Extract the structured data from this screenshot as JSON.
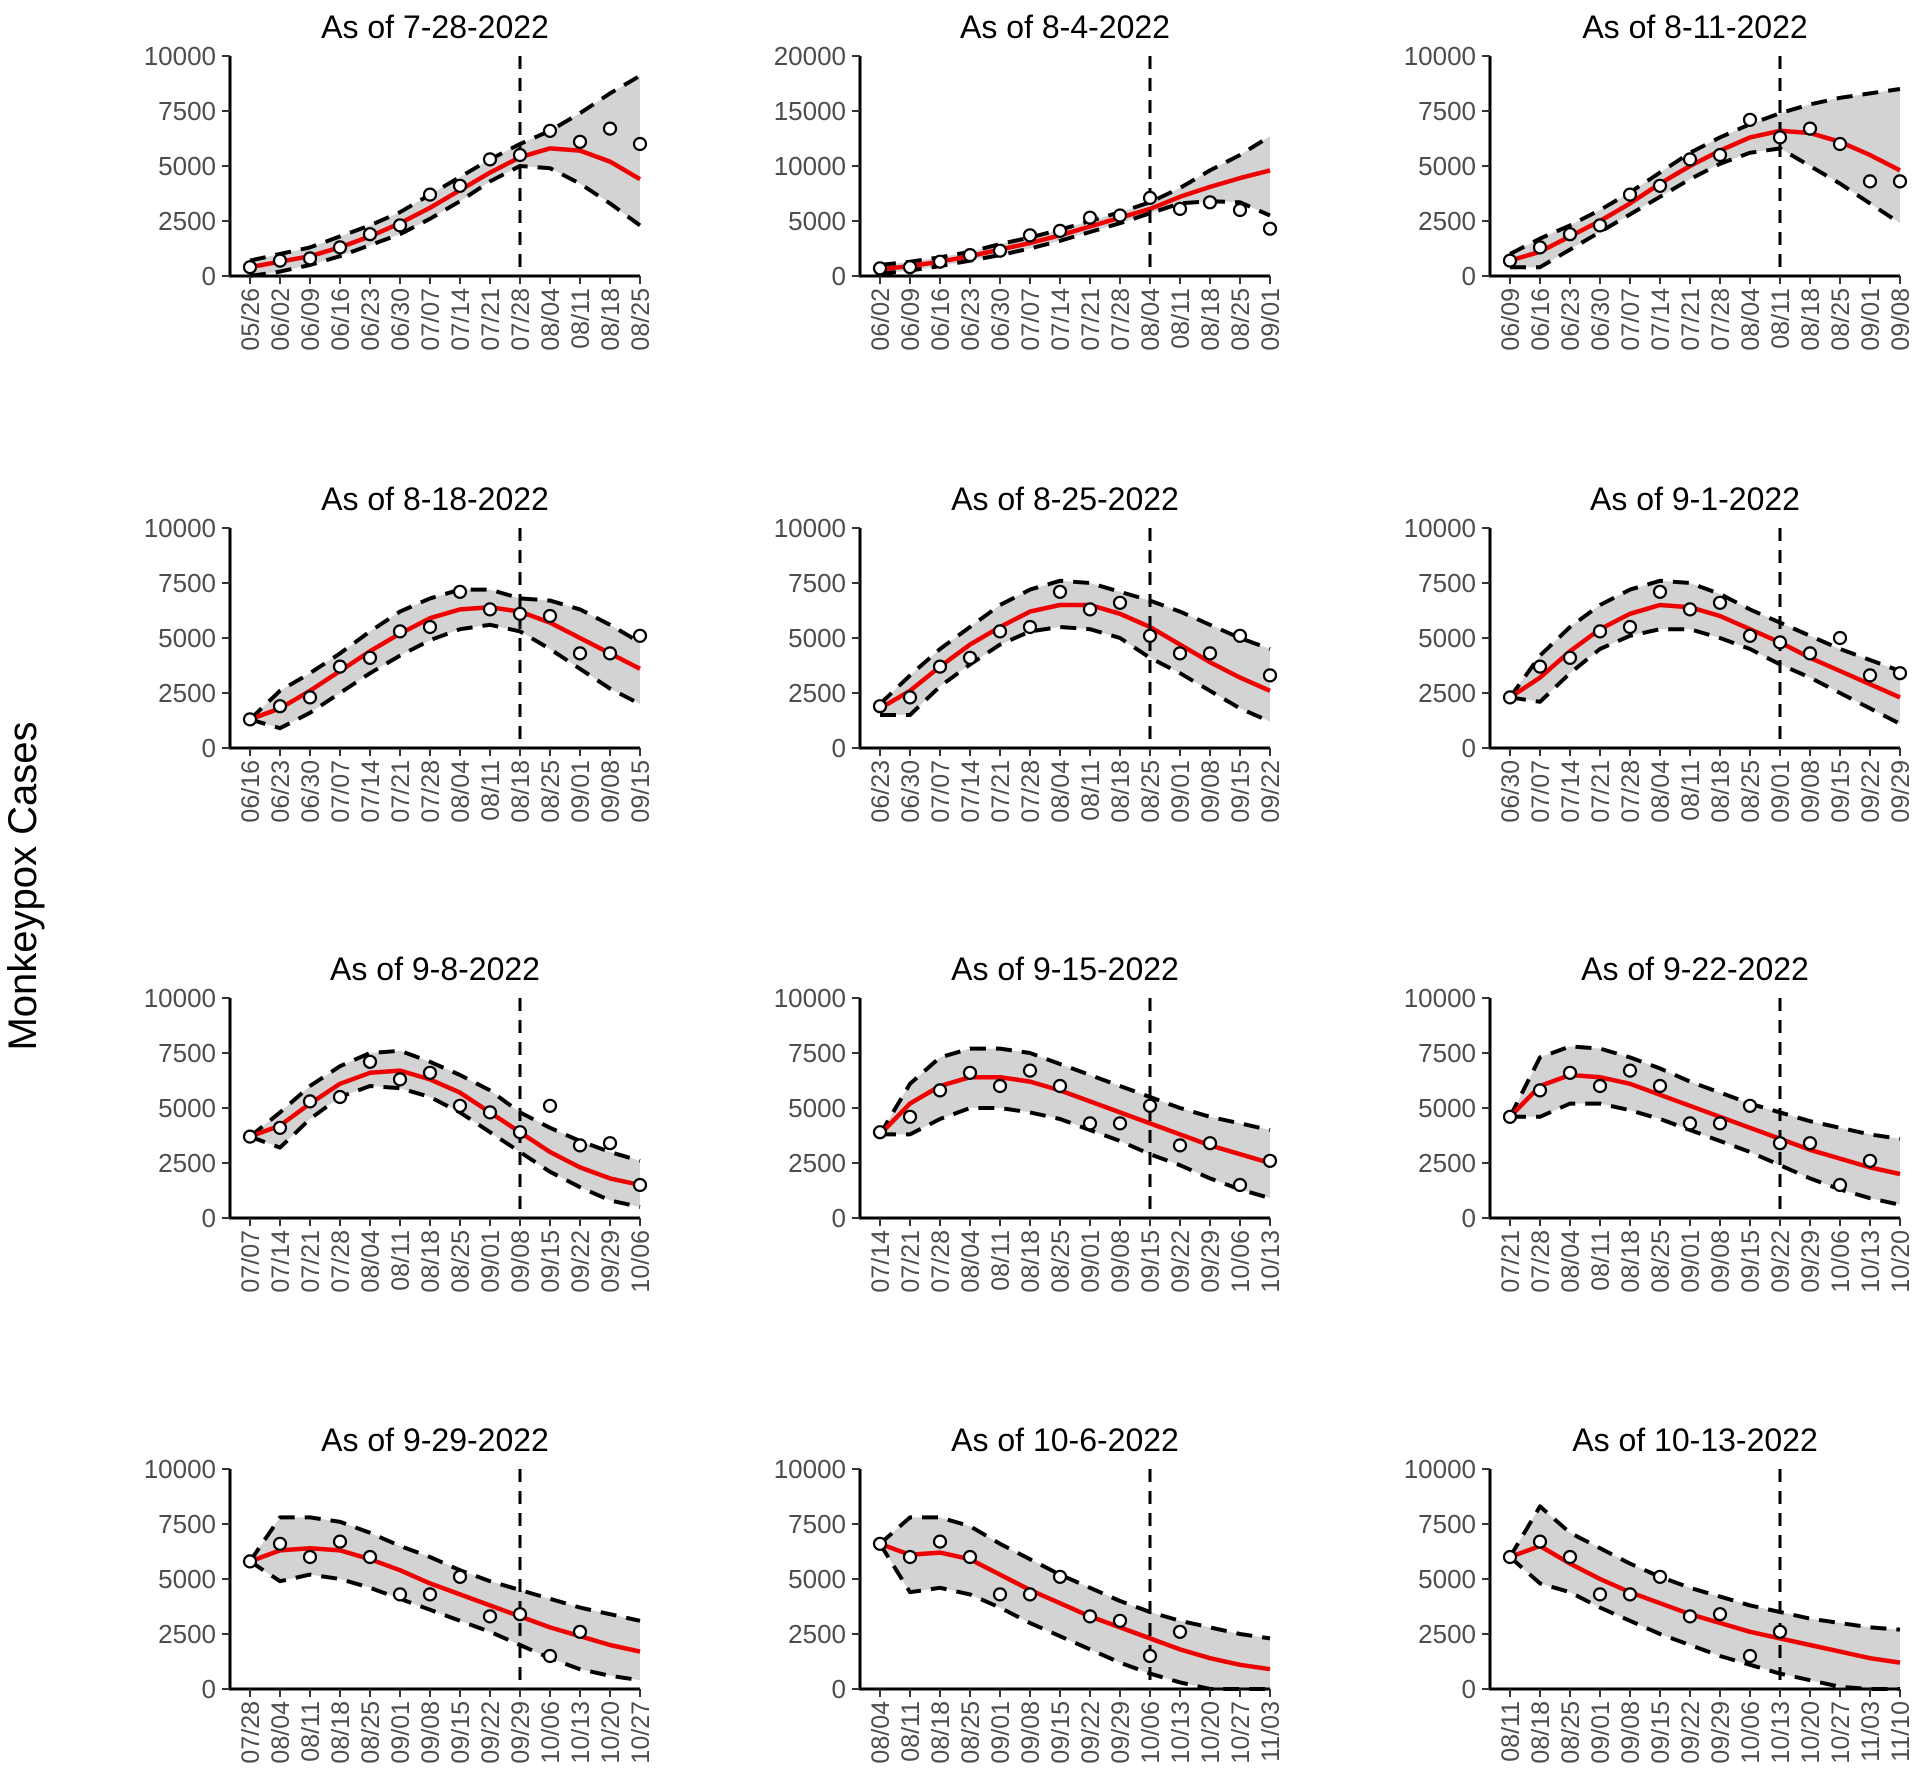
{
  "figure": {
    "ylabel": "Monkeypox Cases"
  },
  "style": {
    "fit_color": "#ee0000",
    "band_color": "#d3d3d3",
    "bound_color": "#000000",
    "obs_color": "#000000"
  },
  "chart_data": [
    {
      "type": "line",
      "title": "As of 7-28-2022",
      "ylim": [
        0,
        10000
      ],
      "yticks": [
        0,
        2500,
        5000,
        7500,
        10000
      ],
      "ytick_labels": [
        "0",
        "2500",
        "5000",
        "7500",
        "10000"
      ],
      "x": [
        "05/26",
        "06/02",
        "06/09",
        "06/16",
        "06/23",
        "06/30",
        "07/07",
        "07/14",
        "07/21",
        "07/28",
        "08/04",
        "08/11",
        "08/18",
        "08/25"
      ],
      "forecast_start": "07/28",
      "observed": [
        400,
        700,
        800,
        1300,
        1900,
        2300,
        3700,
        4100,
        5300,
        5500,
        6600,
        6100,
        6700,
        6000
      ],
      "fit": [
        400,
        650,
        900,
        1300,
        1800,
        2400,
        3100,
        3900,
        4700,
        5400,
        5800,
        5700,
        5200,
        4400
      ],
      "lower": [
        0,
        200,
        500,
        900,
        1400,
        1900,
        2600,
        3400,
        4300,
        5000,
        4900,
        4200,
        3300,
        2300
      ],
      "upper": [
        700,
        1000,
        1300,
        1800,
        2300,
        2900,
        3700,
        4500,
        5300,
        6000,
        6600,
        7400,
        8300,
        9100
      ]
    },
    {
      "type": "line",
      "title": "As of 8-4-2022",
      "ylim": [
        0,
        20000
      ],
      "yticks": [
        0,
        5000,
        10000,
        15000,
        20000
      ],
      "ytick_labels": [
        "0",
        "5000",
        "10000",
        "15000",
        "20000"
      ],
      "x": [
        "06/02",
        "06/09",
        "06/16",
        "06/23",
        "06/30",
        "07/07",
        "07/14",
        "07/21",
        "07/28",
        "08/04",
        "08/11",
        "08/18",
        "08/25",
        "09/01"
      ],
      "forecast_start": "08/04",
      "observed": [
        700,
        800,
        1300,
        1900,
        2300,
        3700,
        4100,
        5300,
        5500,
        7100,
        6100,
        6700,
        6000,
        4300
      ],
      "fit": [
        600,
        900,
        1300,
        1800,
        2400,
        3000,
        3700,
        4500,
        5300,
        6100,
        7200,
        8100,
        8900,
        9600
      ],
      "lower": [
        200,
        500,
        900,
        1400,
        1900,
        2500,
        3200,
        4000,
        4800,
        5700,
        6600,
        6800,
        6700,
        5500
      ],
      "upper": [
        1000,
        1300,
        1700,
        2200,
        2900,
        3500,
        4200,
        5000,
        5800,
        6700,
        8000,
        9600,
        11000,
        12700
      ]
    },
    {
      "type": "line",
      "title": "As of 8-11-2022",
      "ylim": [
        0,
        10000
      ],
      "yticks": [
        0,
        2500,
        5000,
        7500,
        10000
      ],
      "ytick_labels": [
        "0",
        "2500",
        "5000",
        "7500",
        "10000"
      ],
      "x": [
        "06/09",
        "06/16",
        "06/23",
        "06/30",
        "07/07",
        "07/14",
        "07/21",
        "07/28",
        "08/04",
        "08/11",
        "08/18",
        "08/25",
        "09/01",
        "09/08"
      ],
      "forecast_start": "08/11",
      "observed": [
        700,
        1300,
        1900,
        2300,
        3700,
        4100,
        5300,
        5500,
        7100,
        6300,
        6700,
        6000,
        4300,
        4300
      ],
      "fit": [
        700,
        1100,
        1800,
        2500,
        3300,
        4200,
        5000,
        5700,
        6300,
        6600,
        6500,
        6100,
        5500,
        4800
      ],
      "lower": [
        400,
        400,
        1200,
        2000,
        2800,
        3600,
        4400,
        5100,
        5600,
        5800,
        5000,
        4200,
        3300,
        2400
      ],
      "upper": [
        1000,
        1700,
        2300,
        3000,
        3800,
        4700,
        5600,
        6300,
        6900,
        7400,
        7800,
        8100,
        8300,
        8500
      ]
    },
    {
      "type": "line",
      "title": "As of 8-18-2022",
      "ylim": [
        0,
        10000
      ],
      "yticks": [
        0,
        2500,
        5000,
        7500,
        10000
      ],
      "ytick_labels": [
        "0",
        "2500",
        "5000",
        "7500",
        "10000"
      ],
      "x": [
        "06/16",
        "06/23",
        "06/30",
        "07/07",
        "07/14",
        "07/21",
        "07/28",
        "08/04",
        "08/11",
        "08/18",
        "08/25",
        "09/01",
        "09/08",
        "09/15"
      ],
      "forecast_start": "08/18",
      "observed": [
        1300,
        1900,
        2300,
        3700,
        4100,
        5300,
        5500,
        7100,
        6300,
        6100,
        6000,
        4300,
        4300,
        5100
      ],
      "fit": [
        1300,
        1800,
        2600,
        3500,
        4400,
        5200,
        5900,
        6300,
        6400,
        6200,
        5700,
        5000,
        4300,
        3600
      ],
      "lower": [
        1300,
        900,
        1600,
        2500,
        3400,
        4200,
        4900,
        5400,
        5600,
        5300,
        4500,
        3600,
        2700,
        2000
      ],
      "upper": [
        1300,
        2600,
        3400,
        4300,
        5300,
        6200,
        6800,
        7200,
        7200,
        6800,
        6700,
        6300,
        5600,
        4800
      ]
    },
    {
      "type": "line",
      "title": "As of 8-25-2022",
      "ylim": [
        0,
        10000
      ],
      "yticks": [
        0,
        2500,
        5000,
        7500,
        10000
      ],
      "ytick_labels": [
        "0",
        "2500",
        "5000",
        "7500",
        "10000"
      ],
      "x": [
        "06/23",
        "06/30",
        "07/07",
        "07/14",
        "07/21",
        "07/28",
        "08/04",
        "08/11",
        "08/18",
        "08/25",
        "09/01",
        "09/08",
        "09/15",
        "09/22"
      ],
      "forecast_start": "08/25",
      "observed": [
        1900,
        2300,
        3700,
        4100,
        5300,
        5500,
        7100,
        6300,
        6600,
        5100,
        4300,
        4300,
        5100,
        3300
      ],
      "fit": [
        1800,
        2600,
        3700,
        4700,
        5500,
        6200,
        6500,
        6500,
        6100,
        5500,
        4700,
        3900,
        3200,
        2600
      ],
      "lower": [
        1500,
        1500,
        2800,
        3800,
        4700,
        5300,
        5500,
        5400,
        5000,
        4100,
        3400,
        2600,
        1800,
        1200
      ],
      "upper": [
        2000,
        3300,
        4500,
        5500,
        6500,
        7200,
        7600,
        7500,
        7100,
        6700,
        6200,
        5600,
        5000,
        4500
      ]
    },
    {
      "type": "line",
      "title": "As of 9-1-2022",
      "ylim": [
        0,
        10000
      ],
      "yticks": [
        0,
        2500,
        5000,
        7500,
        10000
      ],
      "ytick_labels": [
        "0",
        "2500",
        "5000",
        "7500",
        "10000"
      ],
      "x": [
        "06/30",
        "07/07",
        "07/14",
        "07/21",
        "07/28",
        "08/04",
        "08/11",
        "08/18",
        "08/25",
        "09/01",
        "09/08",
        "09/15",
        "09/22",
        "09/29"
      ],
      "forecast_start": "09/01",
      "observed": [
        2300,
        3700,
        4100,
        5300,
        5500,
        7100,
        6300,
        6600,
        5100,
        4800,
        4300,
        5000,
        3300,
        3400
      ],
      "fit": [
        2300,
        3200,
        4400,
        5400,
        6100,
        6500,
        6400,
        6000,
        5400,
        4800,
        4100,
        3500,
        2900,
        2300
      ],
      "lower": [
        2300,
        2100,
        3400,
        4500,
        5100,
        5400,
        5400,
        5000,
        4500,
        3800,
        3200,
        2500,
        1800,
        1100
      ],
      "upper": [
        2300,
        4200,
        5500,
        6500,
        7200,
        7600,
        7500,
        7000,
        6300,
        5700,
        5100,
        4500,
        4000,
        3500
      ]
    },
    {
      "type": "line",
      "title": "As of 9-8-2022",
      "ylim": [
        0,
        10000
      ],
      "yticks": [
        0,
        2500,
        5000,
        7500,
        10000
      ],
      "ytick_labels": [
        "0",
        "2500",
        "5000",
        "7500",
        "10000"
      ],
      "x": [
        "07/07",
        "07/14",
        "07/21",
        "07/28",
        "08/04",
        "08/11",
        "08/18",
        "08/25",
        "09/01",
        "09/08",
        "09/15",
        "09/22",
        "09/29",
        "10/06"
      ],
      "forecast_start": "09/08",
      "observed": [
        3700,
        4100,
        5300,
        5500,
        7100,
        6300,
        6600,
        5100,
        4800,
        3900,
        5100,
        3300,
        3400,
        1500
      ],
      "fit": [
        3700,
        4200,
        5200,
        6100,
        6600,
        6700,
        6300,
        5700,
        4800,
        3900,
        3000,
        2300,
        1800,
        1500
      ],
      "lower": [
        3700,
        3200,
        4500,
        5500,
        6000,
        5900,
        5500,
        4800,
        3900,
        3000,
        2100,
        1400,
        800,
        500
      ],
      "upper": [
        3700,
        4800,
        6000,
        6900,
        7500,
        7600,
        7100,
        6500,
        5800,
        4800,
        4100,
        3500,
        3000,
        2600
      ]
    },
    {
      "type": "line",
      "title": "As of 9-15-2022",
      "ylim": [
        0,
        10000
      ],
      "yticks": [
        0,
        2500,
        5000,
        7500,
        10000
      ],
      "ytick_labels": [
        "0",
        "2500",
        "5000",
        "7500",
        "10000"
      ],
      "x": [
        "07/14",
        "07/21",
        "07/28",
        "08/04",
        "08/11",
        "08/18",
        "08/25",
        "09/01",
        "09/08",
        "09/15",
        "09/22",
        "09/29",
        "10/06",
        "10/13"
      ],
      "forecast_start": "09/15",
      "observed": [
        3900,
        4600,
        5800,
        6600,
        6000,
        6700,
        6000,
        4300,
        4300,
        5100,
        3300,
        3400,
        1500,
        2600
      ],
      "fit": [
        3800,
        5200,
        6000,
        6400,
        6400,
        6200,
        5800,
        5300,
        4800,
        4300,
        3800,
        3300,
        2900,
        2500
      ],
      "lower": [
        3800,
        3800,
        4500,
        5000,
        5000,
        4800,
        4500,
        4000,
        3500,
        2900,
        2400,
        1800,
        1300,
        900
      ],
      "upper": [
        3800,
        6100,
        7300,
        7700,
        7700,
        7500,
        7000,
        6500,
        6000,
        5500,
        5000,
        4600,
        4300,
        4000
      ]
    },
    {
      "type": "line",
      "title": "As of 9-22-2022",
      "ylim": [
        0,
        10000
      ],
      "yticks": [
        0,
        2500,
        5000,
        7500,
        10000
      ],
      "ytick_labels": [
        "0",
        "2500",
        "5000",
        "7500",
        "10000"
      ],
      "x": [
        "07/21",
        "07/28",
        "08/04",
        "08/11",
        "08/18",
        "08/25",
        "09/01",
        "09/08",
        "09/15",
        "09/22",
        "09/29",
        "10/06",
        "10/13",
        "10/20"
      ],
      "forecast_start": "09/22",
      "observed": [
        4600,
        5800,
        6600,
        6000,
        6700,
        6000,
        4300,
        4300,
        5100,
        3400,
        3400,
        1500,
        2600,
        null
      ],
      "fit": [
        4600,
        6000,
        6500,
        6400,
        6100,
        5600,
        5100,
        4600,
        4100,
        3600,
        3100,
        2700,
        2300,
        2000
      ],
      "lower": [
        4600,
        4600,
        5200,
        5200,
        4900,
        4500,
        4000,
        3500,
        3000,
        2400,
        1800,
        1300,
        900,
        600
      ],
      "upper": [
        4600,
        7300,
        7800,
        7700,
        7300,
        6800,
        6200,
        5700,
        5200,
        4800,
        4400,
        4100,
        3800,
        3600
      ]
    },
    {
      "type": "line",
      "title": "As of 9-29-2022",
      "ylim": [
        0,
        10000
      ],
      "yticks": [
        0,
        2500,
        5000,
        7500,
        10000
      ],
      "ytick_labels": [
        "0",
        "2500",
        "5000",
        "7500",
        "10000"
      ],
      "x": [
        "07/28",
        "08/04",
        "08/11",
        "08/18",
        "08/25",
        "09/01",
        "09/08",
        "09/15",
        "09/22",
        "09/29",
        "10/06",
        "10/13",
        "10/20",
        "10/27"
      ],
      "forecast_start": "09/29",
      "observed": [
        5800,
        6600,
        6000,
        6700,
        6000,
        4300,
        4300,
        5100,
        3300,
        3400,
        1500,
        2600,
        null,
        null
      ],
      "fit": [
        5800,
        6300,
        6400,
        6300,
        5900,
        5400,
        4800,
        4300,
        3800,
        3300,
        2800,
        2400,
        2000,
        1700
      ],
      "lower": [
        5800,
        4900,
        5200,
        5000,
        4600,
        4100,
        3600,
        3100,
        2600,
        2000,
        1400,
        900,
        600,
        400
      ],
      "upper": [
        5800,
        7800,
        7800,
        7600,
        7100,
        6500,
        6000,
        5400,
        4900,
        4500,
        4100,
        3700,
        3400,
        3100
      ]
    },
    {
      "type": "line",
      "title": "As of 10-6-2022",
      "ylim": [
        0,
        10000
      ],
      "yticks": [
        0,
        2500,
        5000,
        7500,
        10000
      ],
      "ytick_labels": [
        "0",
        "2500",
        "5000",
        "7500",
        "10000"
      ],
      "x": [
        "08/04",
        "08/11",
        "08/18",
        "08/25",
        "09/01",
        "09/08",
        "09/15",
        "09/22",
        "09/29",
        "10/06",
        "10/13",
        "10/20",
        "10/27",
        "11/03"
      ],
      "forecast_start": "10/06",
      "observed": [
        6600,
        6000,
        6700,
        6000,
        4300,
        4300,
        5100,
        3300,
        3100,
        1500,
        2600,
        null,
        null,
        null
      ],
      "fit": [
        6600,
        6100,
        6200,
        5900,
        5200,
        4500,
        3900,
        3300,
        2800,
        2300,
        1800,
        1400,
        1100,
        900
      ],
      "lower": [
        6600,
        4400,
        4600,
        4300,
        3700,
        3000,
        2400,
        1800,
        1200,
        700,
        300,
        0,
        0,
        0
      ],
      "upper": [
        6600,
        7800,
        7800,
        7400,
        6600,
        5900,
        5200,
        4600,
        4000,
        3500,
        3100,
        2800,
        2500,
        2300
      ]
    },
    {
      "type": "line",
      "title": "As of 10-13-2022",
      "ylim": [
        0,
        10000
      ],
      "yticks": [
        0,
        2500,
        5000,
        7500,
        10000
      ],
      "ytick_labels": [
        "0",
        "2500",
        "5000",
        "7500",
        "10000"
      ],
      "x": [
        "08/11",
        "08/18",
        "08/25",
        "09/01",
        "09/08",
        "09/15",
        "09/22",
        "09/29",
        "10/06",
        "10/13",
        "10/20",
        "10/27",
        "11/03",
        "11/10"
      ],
      "forecast_start": "10/13",
      "observed": [
        6000,
        6700,
        6000,
        4300,
        4300,
        5100,
        3300,
        3400,
        1500,
        2600,
        null,
        null,
        null,
        null
      ],
      "fit": [
        6000,
        6500,
        5700,
        5000,
        4400,
        3900,
        3400,
        3000,
        2600,
        2300,
        2000,
        1700,
        1400,
        1200
      ],
      "lower": [
        6000,
        4800,
        4400,
        3700,
        3100,
        2500,
        2000,
        1500,
        1100,
        700,
        400,
        100,
        0,
        0
      ],
      "upper": [
        6000,
        8300,
        7100,
        6400,
        5700,
        5100,
        4600,
        4200,
        3800,
        3500,
        3200,
        3000,
        2800,
        2700
      ]
    }
  ]
}
